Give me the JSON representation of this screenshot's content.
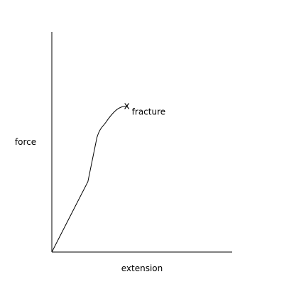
{
  "chart_data": {
    "type": "line",
    "title": "",
    "xlabel": "extension",
    "ylabel": "force",
    "xlim": [
      0,
      10
    ],
    "ylim": [
      0,
      10
    ],
    "grid": false,
    "series": [
      {
        "values": [
          [
            0,
            0
          ],
          [
            1,
            1.6
          ],
          [
            2,
            3.2
          ],
          [
            2.5,
            5.2
          ],
          [
            3,
            5.9
          ],
          [
            3.5,
            6.4
          ],
          [
            3.9,
            6.6
          ],
          [
            4.2,
            6.6
          ]
        ]
      }
    ],
    "annotations": [
      {
        "marker": "x",
        "text": "fracture",
        "x": 4.2,
        "y": 6.6
      }
    ],
    "colors": {
      "line": "#000000",
      "axis": "#000000"
    }
  }
}
